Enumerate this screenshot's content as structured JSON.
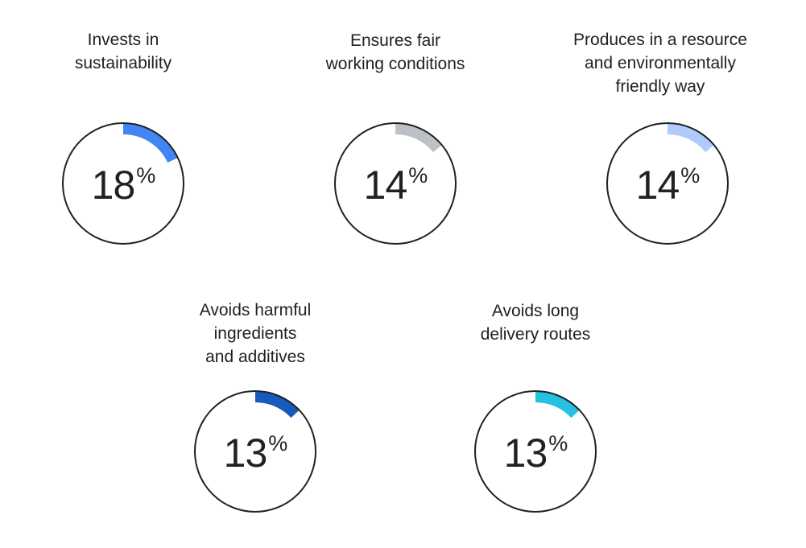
{
  "chart_data": {
    "type": "gauge",
    "unit": "%",
    "items": [
      {
        "label_lines": [
          "Invests in",
          "sustainability"
        ],
        "value": 18,
        "color": "#4285f4"
      },
      {
        "label_lines": [
          "Ensures fair",
          "working conditions"
        ],
        "value": 14,
        "color": "#bdc1c6"
      },
      {
        "label_lines": [
          "Produces in a resource",
          "and environmentally",
          "friendly way"
        ],
        "value": 14,
        "color": "#aecbfa"
      },
      {
        "label_lines": [
          "Avoids harmful",
          "ingredients",
          "and additives"
        ],
        "value": 13,
        "color": "#185abc"
      },
      {
        "label_lines": [
          "Avoids long",
          "delivery routes"
        ],
        "value": 13,
        "color": "#24c1e0"
      }
    ]
  }
}
